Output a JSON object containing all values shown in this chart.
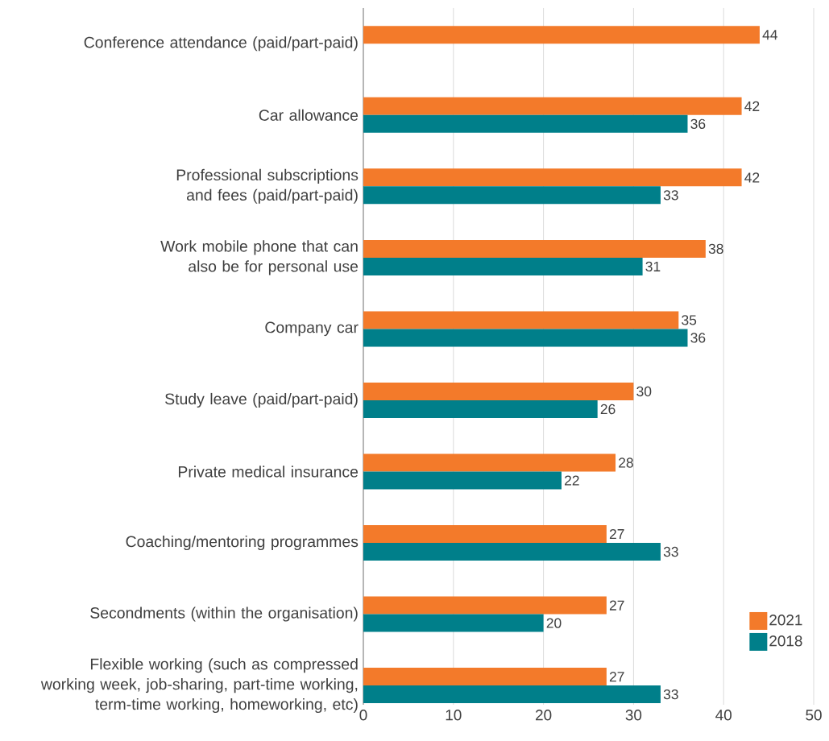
{
  "chart_data": {
    "type": "bar",
    "orientation": "horizontal",
    "categories": [
      "Conference attendance (paid/part-paid)",
      "Car allowance",
      "Professional subscriptions and fees (paid/part-paid)",
      "Work mobile phone that can also be for personal use",
      "Company car",
      "Study leave (paid/part-paid)",
      "Private medical insurance",
      "Coaching/mentoring programmes",
      "Secondments (within the organisation)",
      "Flexible working (such as compressed working week, job-sharing, part-time working, term-time working, homeworking, etc)"
    ],
    "series": [
      {
        "name": "2021",
        "color": "#f37a2a",
        "values": [
          44,
          42,
          42,
          38,
          35,
          30,
          28,
          27,
          27,
          27
        ]
      },
      {
        "name": "2018",
        "color": "#007f8a",
        "values": [
          null,
          36,
          33,
          31,
          36,
          26,
          22,
          33,
          20,
          33
        ]
      }
    ],
    "xlim": [
      0,
      50
    ],
    "xticks": [
      0,
      10,
      20,
      30,
      40,
      50
    ],
    "grid": "x",
    "legend": "bottom right",
    "data_labels": true
  }
}
